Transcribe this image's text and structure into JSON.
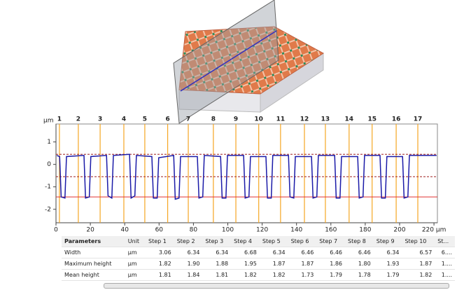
{
  "chart_data": {
    "type": "line",
    "y_label": "µm",
    "xlim": [
      0,
      222
    ],
    "ylim": [
      -2.6,
      1.8
    ],
    "xticks": [
      0,
      20,
      40,
      60,
      80,
      100,
      120,
      140,
      160,
      180,
      200,
      {
        "value": 220,
        "label": "220 µm"
      }
    ],
    "yticks": [
      -2,
      -1,
      0,
      1
    ],
    "steps": {
      "labels": [
        "1",
        "2",
        "3",
        "4",
        "5",
        "6",
        "7",
        "8",
        "9",
        "10",
        "11",
        "12",
        "13",
        "14",
        "15",
        "16",
        "17"
      ],
      "x": [
        2,
        13,
        25.7,
        39.5,
        51.7,
        65,
        77,
        91.6,
        104.7,
        118,
        130.7,
        144.6,
        156.8,
        170.6,
        184,
        198,
        210.6
      ],
      "color": "#f5a623"
    },
    "ref_lines": [
      {
        "y": -1.45,
        "color": "#e03030",
        "dashed": false
      },
      {
        "y": -0.55,
        "color": "#a02020",
        "dashed": true
      },
      {
        "y": 0.45,
        "color": "#a02020",
        "dashed": true
      }
    ],
    "series": [
      {
        "color": "#1a1aa8",
        "x": [
          0.5,
          2.1,
          3.0,
          5.2,
          6.1,
          16.3,
          17.2,
          19.4,
          20.3,
          29.4,
          30.3,
          32.5,
          33.4,
          42.8,
          43.7,
          45.9,
          46.8,
          55.8,
          56.7,
          58.9,
          59.8,
          68.5,
          69.4,
          71.6,
          72.5,
          82.3,
          83.2,
          85.4,
          86.3,
          95.8,
          96.7,
          98.9,
          99.8,
          109.2,
          110.1,
          112.3,
          113.2,
          122.2,
          123.1,
          125.3,
          126.2,
          135.3,
          136.2,
          138.4,
          139.3,
          148.7,
          149.6,
          151.8,
          152.7,
          162.2,
          163.1,
          165.3,
          166.2,
          175.6,
          176.5,
          178.7,
          179.6,
          188.6,
          189.5,
          191.7,
          192.6,
          201.7,
          202.6,
          204.8,
          205.7,
          221.5
        ],
        "values": [
          0.4,
          0.35,
          -1.45,
          -1.5,
          0.35,
          0.4,
          -1.5,
          -1.45,
          0.35,
          0.4,
          -1.4,
          -1.5,
          0.4,
          0.45,
          -1.5,
          -1.4,
          0.4,
          0.35,
          -1.5,
          -1.5,
          0.3,
          0.4,
          -1.55,
          -1.5,
          0.35,
          0.35,
          -1.5,
          -1.45,
          0.4,
          0.35,
          -1.5,
          -1.5,
          0.4,
          0.4,
          -1.5,
          -1.45,
          0.35,
          0.35,
          -1.5,
          -1.5,
          0.4,
          0.4,
          -1.45,
          -1.5,
          0.35,
          0.35,
          -1.5,
          -1.45,
          0.4,
          0.4,
          -1.5,
          -1.5,
          0.35,
          0.35,
          -1.5,
          -1.45,
          0.4,
          0.4,
          -1.5,
          -1.5,
          0.35,
          0.35,
          -1.5,
          -1.45,
          0.4,
          0.4
        ]
      }
    ]
  },
  "table": {
    "header": [
      "Parameters",
      "Unit",
      "Step 1",
      "Step 2",
      "Step 3",
      "Step 4",
      "Step 5",
      "Step 6",
      "Step 7",
      "Step 8",
      "Step 9",
      "Step 10",
      "St..."
    ],
    "rows": [
      [
        "Width",
        "µm",
        "3.06",
        "6.34",
        "6.34",
        "6.68",
        "6.34",
        "6.46",
        "6.46",
        "6.46",
        "6.34",
        "6.57",
        "6...."
      ],
      [
        "Maximum height",
        "µm",
        "1.82",
        "1.90",
        "1.88",
        "1.95",
        "1.87",
        "1.87",
        "1.86",
        "1.80",
        "1.93",
        "1.87",
        "1...."
      ],
      [
        "Mean height",
        "µm",
        "1.81",
        "1.84",
        "1.81",
        "1.82",
        "1.82",
        "1.73",
        "1.79",
        "1.78",
        "1.79",
        "1.82",
        "1...."
      ]
    ]
  }
}
